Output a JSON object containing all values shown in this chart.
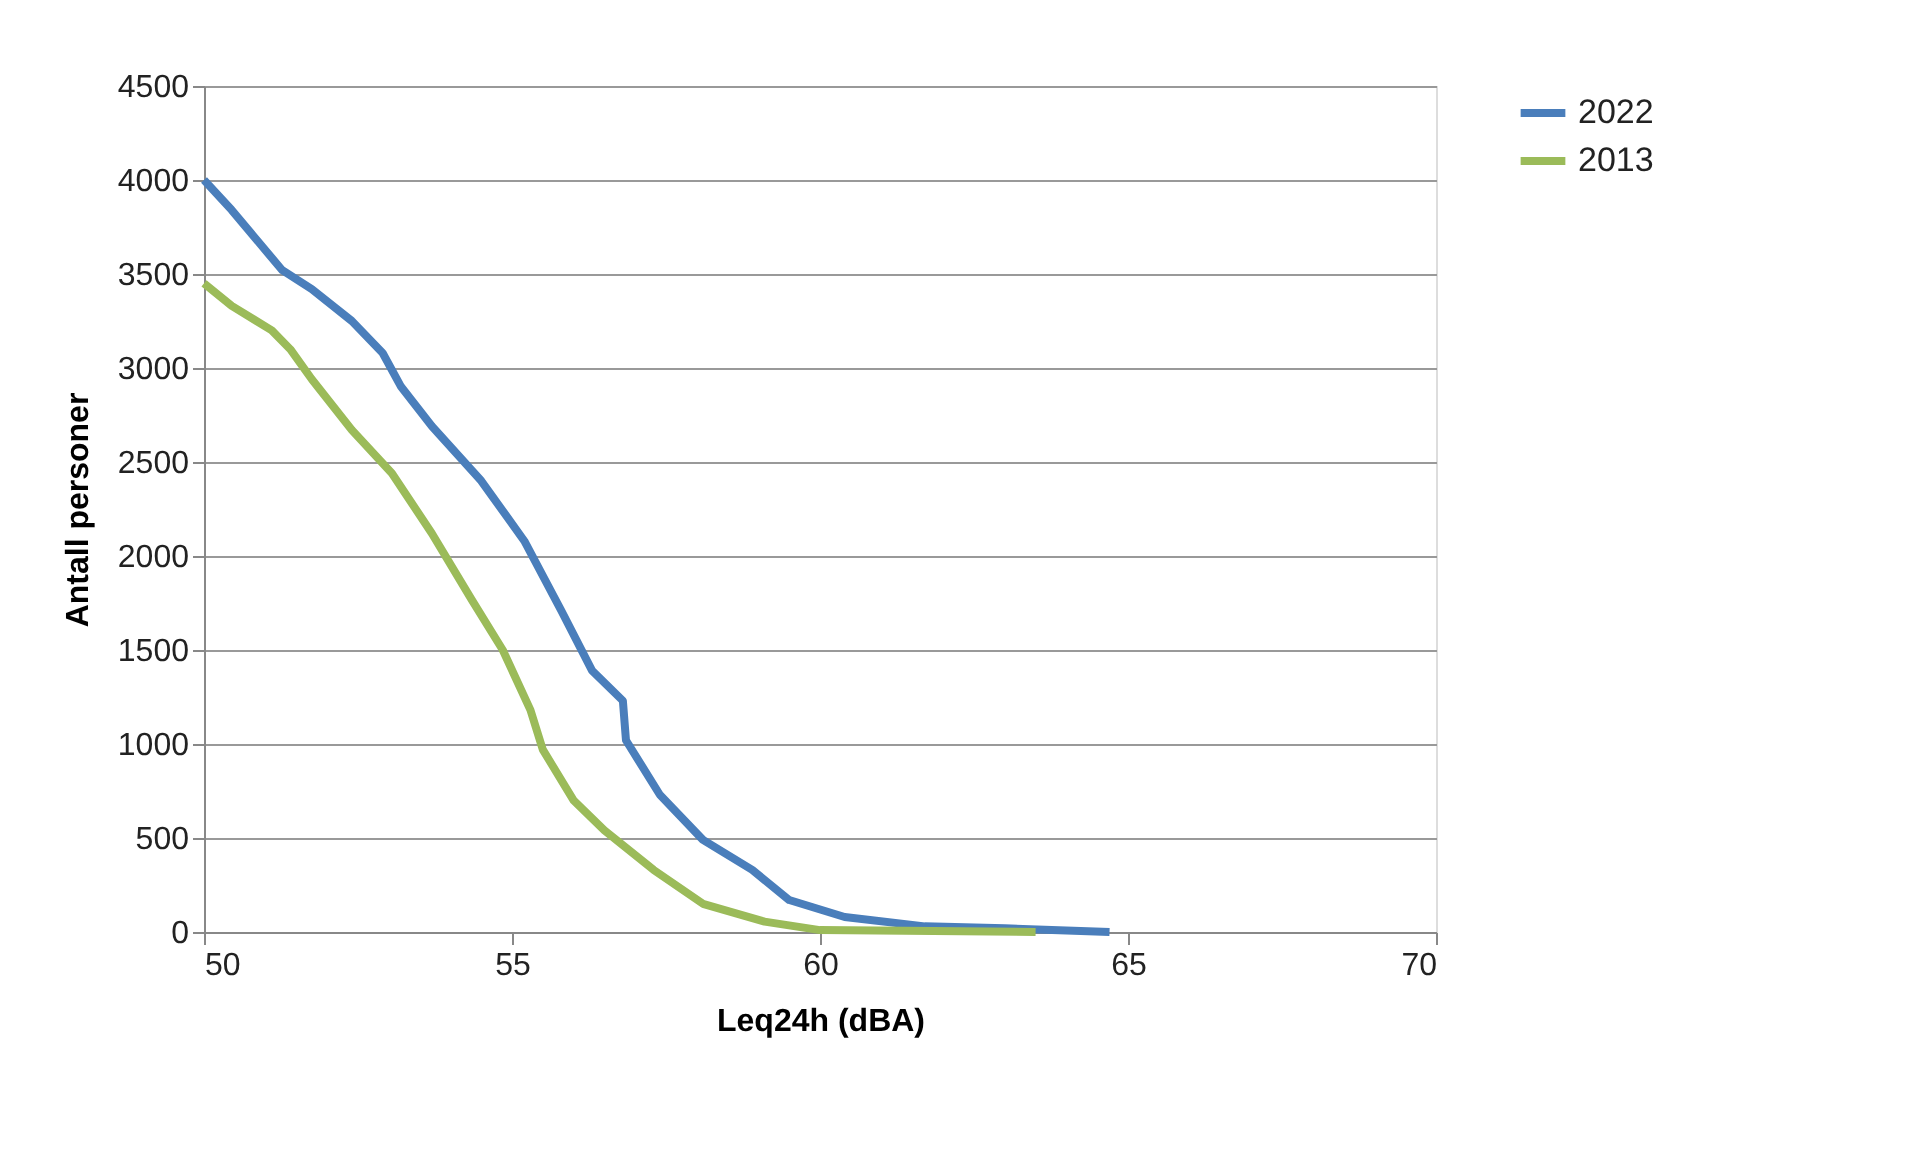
{
  "chart_data": {
    "type": "line",
    "xlabel": "Leq24h (dBA)",
    "ylabel": "Antall personer",
    "xlim": [
      50,
      70
    ],
    "xticks": [
      50,
      55,
      60,
      65,
      70
    ],
    "ylim": [
      0,
      4500
    ],
    "yticks": [
      0,
      500,
      1000,
      1500,
      2000,
      2500,
      3000,
      3500,
      4000,
      4500
    ],
    "grid": "y",
    "legend": "right",
    "marker": "none",
    "line_style": "solid",
    "series": [
      {
        "name": "2022",
        "color": "#4a7ebb",
        "x": [
          50,
          50.45,
          51.27,
          51.75,
          52.4,
          52.9,
          53.2,
          53.7,
          54.5,
          55.2,
          55.8,
          56.3,
          56.8,
          56.85,
          57.4,
          58.1,
          58.9,
          59.5,
          60.4,
          61.7,
          63,
          64.7
        ],
        "values": [
          4000,
          3840,
          3520,
          3420,
          3250,
          3080,
          2900,
          2690,
          2400,
          2080,
          1710,
          1390,
          1230,
          1020,
          730,
          490,
          330,
          170,
          80,
          30,
          20,
          0
        ]
      },
      {
        "name": "2013",
        "color": "#9bbb59",
        "x": [
          50,
          50.45,
          51.1,
          51.4,
          51.75,
          52.4,
          53.05,
          53.7,
          54.35,
          54.85,
          55.3,
          55.5,
          56.0,
          56.5,
          57.3,
          58.1,
          59.1,
          60.0,
          63.5
        ],
        "values": [
          3450,
          3330,
          3200,
          3100,
          2940,
          2670,
          2440,
          2120,
          1765,
          1500,
          1180,
          970,
          700,
          540,
          330,
          150,
          55,
          10,
          0
        ]
      }
    ]
  }
}
